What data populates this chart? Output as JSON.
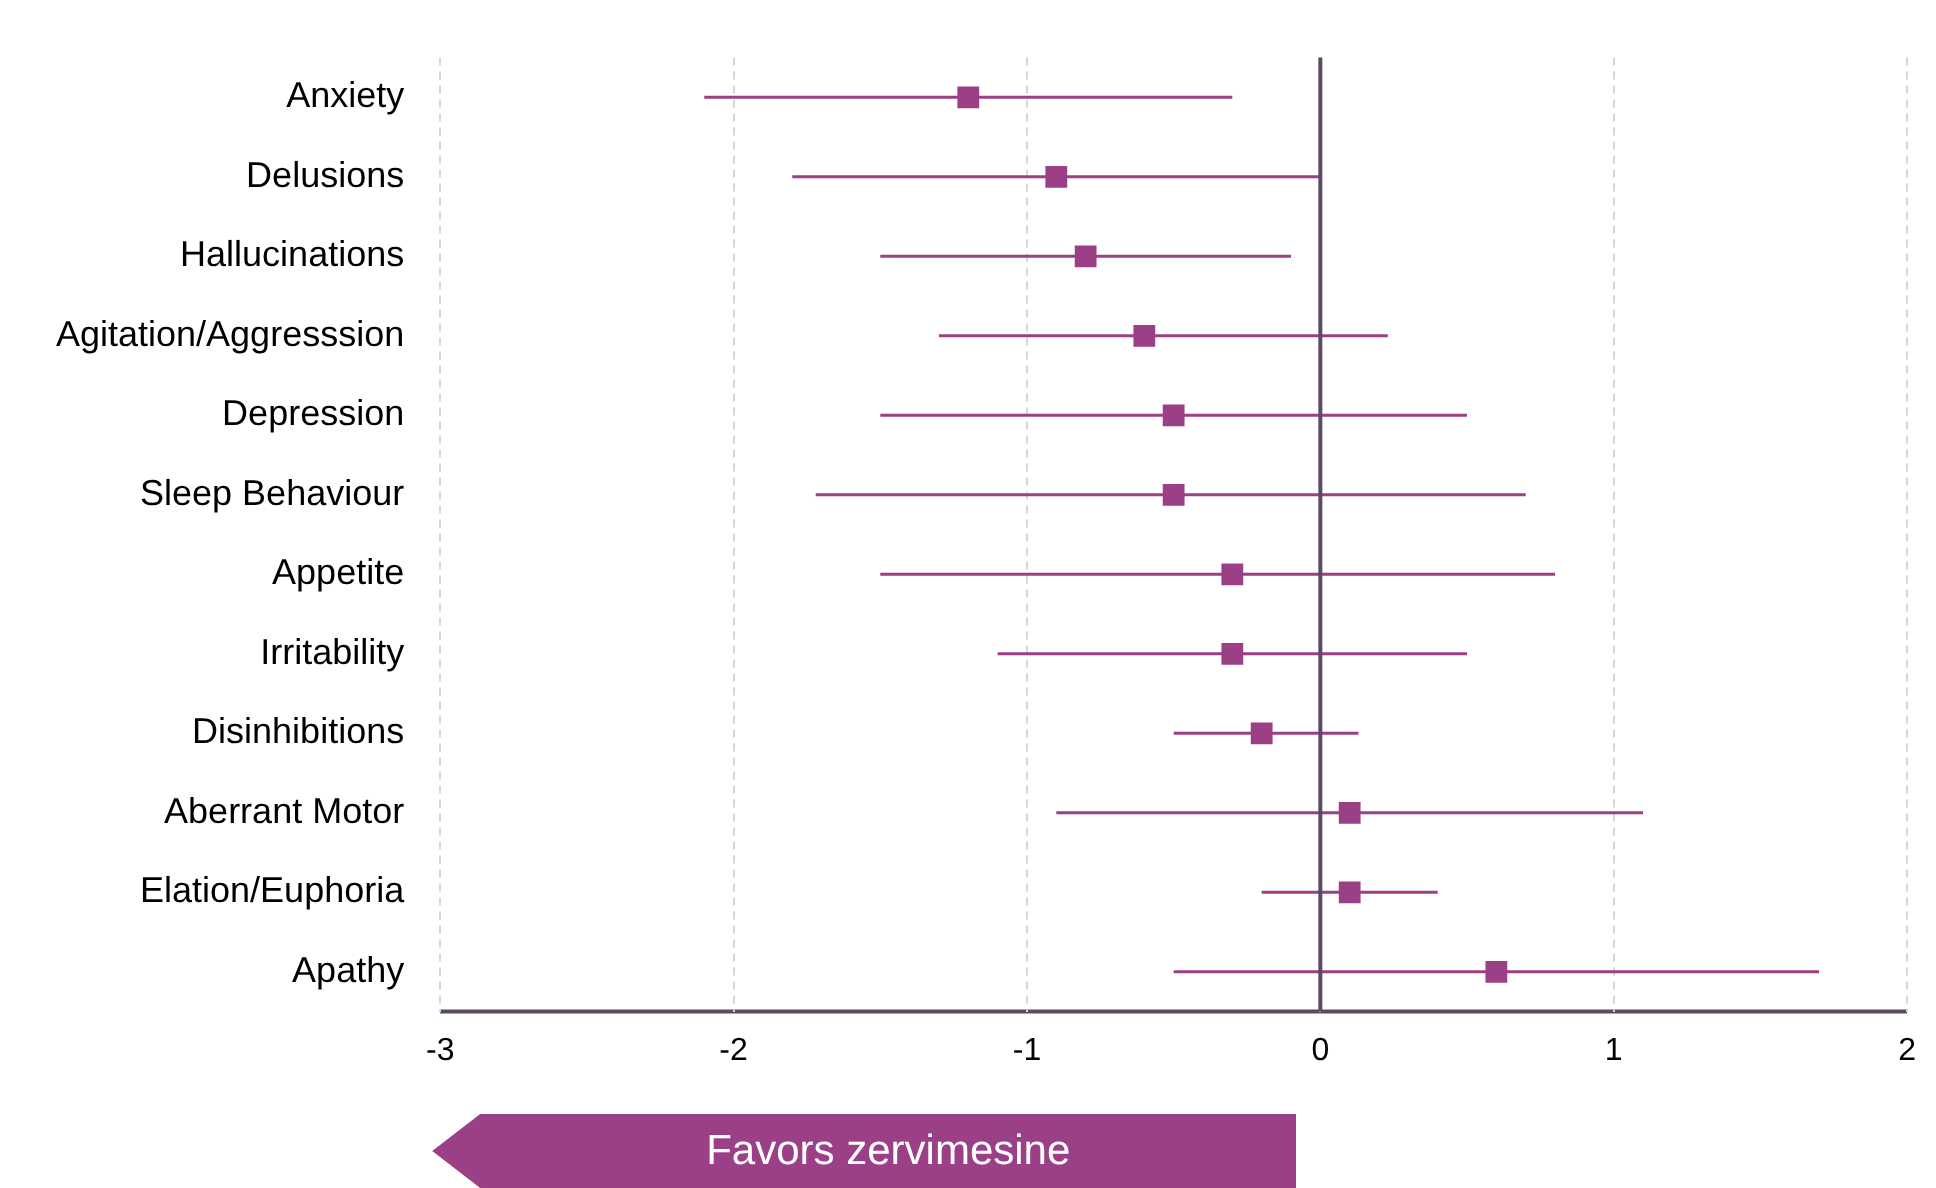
{
  "chart_data": {
    "type": "scatter",
    "orientation": "horizontal",
    "categories": [
      "Anxiety",
      "Delusions",
      "Hallucinations",
      "Agitation/Aggresssion",
      "Depression",
      "Sleep Behaviour",
      "Appetite",
      "Irritability",
      "Disinhibitions",
      "Aberrant Motor",
      "Elation/Euphoria",
      "Apathy"
    ],
    "series": [
      {
        "color": "#9b3f86",
        "values": [
          -1.2,
          -0.9,
          -0.8,
          -0.6,
          -0.5,
          -0.5,
          -0.3,
          -0.3,
          -0.2,
          0.1,
          0.1,
          0.6
        ],
        "errors": [
          [
            -2.1,
            -0.3
          ],
          [
            -1.8,
            0
          ],
          [
            -1.5,
            -0.1
          ],
          [
            -1.3,
            0.23
          ],
          [
            -1.5,
            0.5
          ],
          [
            -1.72,
            0.7
          ],
          [
            -1.5,
            0.8
          ],
          [
            -1.1,
            0.5
          ],
          [
            -0.5,
            0.13
          ],
          [
            -0.9,
            1.1
          ],
          [
            -0.2,
            0.4
          ],
          [
            -0.5,
            1.7
          ]
        ]
      }
    ],
    "xlim": [
      -3,
      2
    ],
    "xticks": [
      -3,
      -2,
      -1,
      0,
      1,
      2
    ],
    "grid": "x",
    "marker": "square",
    "legend": false,
    "ref_lines": [
      {
        "axis": "x",
        "value": 0,
        "color": "#5b4a63"
      }
    ],
    "annotations": [
      "Favors zervimesine"
    ]
  }
}
